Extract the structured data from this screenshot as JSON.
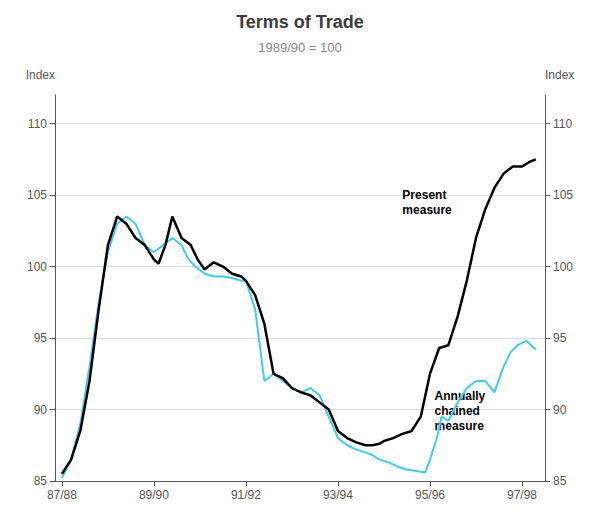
{
  "chart_data": {
    "type": "line",
    "title": "Terms of Trade",
    "subtitle": "1989/90 = 100",
    "ylabel": "Index",
    "y2label": "Index",
    "xlim": [
      -0.3,
      21.0
    ],
    "xticks": [
      {
        "value": 0,
        "label": "87/88"
      },
      {
        "value": 4,
        "label": "89/90"
      },
      {
        "value": 8,
        "label": "91/92"
      },
      {
        "value": 12,
        "label": "93/94"
      },
      {
        "value": 16,
        "label": "95/96"
      },
      {
        "value": 20,
        "label": "97/98"
      }
    ],
    "ylim": [
      85,
      112
    ],
    "yticks": [
      85,
      90,
      95,
      100,
      105,
      110
    ],
    "y2lim": [
      85,
      112
    ],
    "y2ticks": [
      85,
      90,
      95,
      100,
      105,
      110
    ],
    "grid": true,
    "series": [
      {
        "color": "#000000",
        "x": [
          0,
          0.4,
          0.8,
          1.2,
          1.6,
          2.0,
          2.4,
          2.8,
          3.2,
          3.6,
          4.0,
          4.2,
          4.5,
          4.8,
          5.2,
          5.6,
          5.9,
          6.2,
          6.6,
          7.0,
          7.4,
          7.8,
          8.0,
          8.4,
          8.8,
          9.2,
          9.6,
          10.0,
          10.4,
          10.8,
          11.2,
          11.6,
          12.0,
          12.4,
          12.8,
          13.2,
          13.5,
          13.8,
          14.0,
          14.4,
          14.8,
          15.2,
          15.6,
          16.0,
          16.4,
          16.8,
          17.2,
          17.6,
          18.0,
          18.4,
          18.8,
          19.2,
          19.6,
          20.0,
          20.3,
          20.6
        ],
        "values": [
          85.5,
          86.5,
          88.5,
          92.0,
          97.0,
          101.5,
          103.5,
          103.0,
          102.0,
          101.5,
          100.5,
          100.2,
          101.5,
          103.5,
          102.0,
          101.5,
          100.5,
          99.8,
          100.3,
          100.0,
          99.5,
          99.3,
          99.0,
          98.0,
          96.0,
          92.5,
          92.2,
          91.5,
          91.2,
          91.0,
          90.5,
          90.0,
          88.5,
          88.0,
          87.7,
          87.5,
          87.5,
          87.6,
          87.8,
          88.0,
          88.3,
          88.5,
          89.5,
          92.5,
          94.3,
          94.5,
          96.5,
          99.0,
          102.0,
          104.0,
          105.5,
          106.5,
          107.0,
          107.0,
          107.3,
          107.5
        ]
      },
      {
        "color": "#44ccee",
        "x": [
          0,
          0.4,
          0.8,
          1.2,
          1.6,
          2.0,
          2.4,
          2.8,
          3.2,
          3.6,
          4.0,
          4.4,
          4.8,
          5.2,
          5.5,
          5.8,
          6.2,
          6.6,
          7.0,
          7.4,
          7.8,
          8.0,
          8.4,
          8.8,
          9.2,
          9.6,
          10.0,
          10.4,
          10.8,
          11.2,
          11.6,
          12.0,
          12.4,
          12.8,
          13.2,
          13.5,
          13.8,
          14.2,
          14.6,
          15.0,
          15.4,
          15.8,
          16.0,
          16.3,
          16.5,
          16.8,
          17.2,
          17.6,
          18.0,
          18.4,
          18.8,
          19.2,
          19.5,
          19.8,
          20.2,
          20.6
        ],
        "values": [
          85.2,
          86.5,
          89.0,
          93.0,
          97.5,
          101.0,
          103.0,
          103.5,
          103.0,
          101.5,
          101.0,
          101.5,
          102.0,
          101.5,
          100.5,
          100.0,
          99.5,
          99.3,
          99.3,
          99.2,
          99.0,
          99.0,
          97.0,
          92.0,
          92.5,
          92.0,
          91.5,
          91.2,
          91.5,
          91.0,
          89.5,
          88.0,
          87.5,
          87.2,
          87.0,
          86.8,
          86.5,
          86.3,
          86.0,
          85.8,
          85.7,
          85.6,
          86.5,
          88.0,
          89.5,
          89.2,
          90.5,
          91.5,
          92.0,
          92.0,
          91.2,
          93.0,
          94.0,
          94.5,
          94.8,
          94.2
        ]
      }
    ],
    "annotations": [
      {
        "text": "Present\nmeasure",
        "x": 14.8,
        "y": 105.5
      },
      {
        "text": "Annually\nchained\nmeasure",
        "x": 16.2,
        "y": 91.5
      }
    ]
  }
}
